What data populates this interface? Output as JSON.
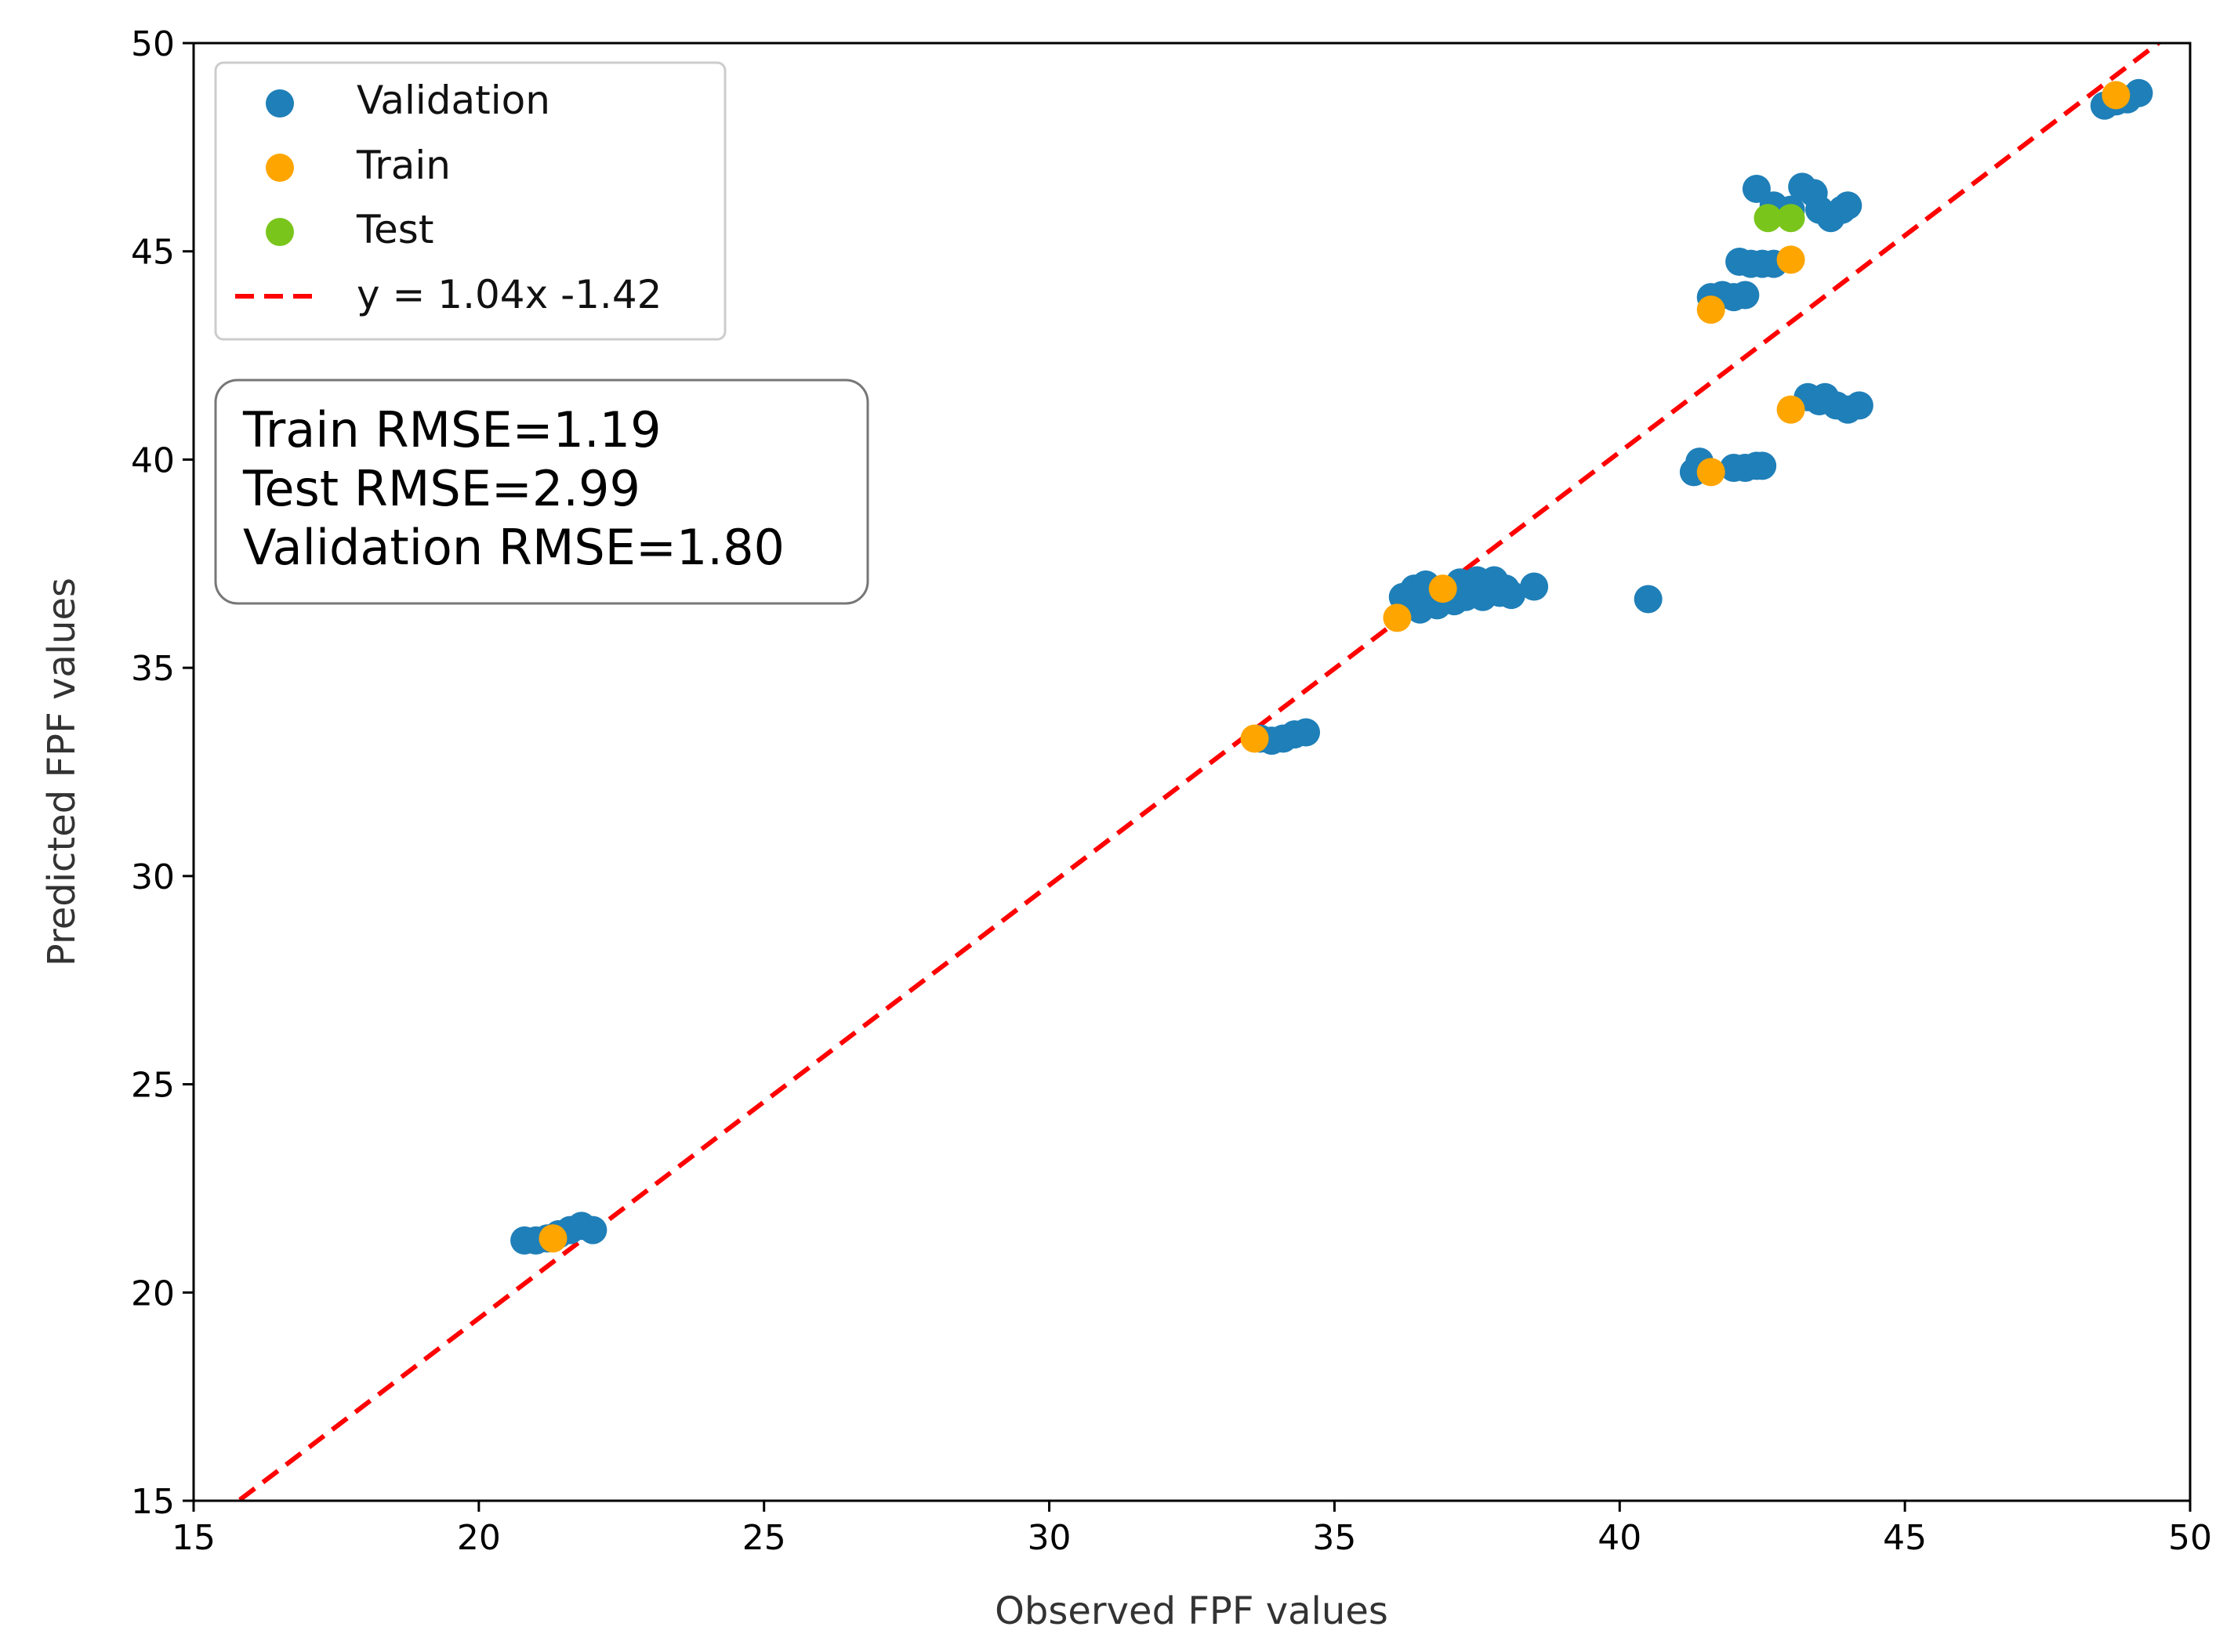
{
  "chart_data": {
    "type": "scatter",
    "xlabel": "Observed FPF values",
    "ylabel": "Predicted FPF values",
    "xlim": [
      15,
      50
    ],
    "ylim": [
      15,
      50
    ],
    "xticks": [
      15,
      20,
      25,
      30,
      35,
      40,
      45,
      50
    ],
    "yticks": [
      15,
      20,
      25,
      30,
      35,
      40,
      45,
      50
    ],
    "grid": false,
    "legend_position": "top-left",
    "series": [
      {
        "name": "Validation",
        "color": "#1f7fb8",
        "points": [
          [
            20.8,
            21.25
          ],
          [
            21.0,
            21.25
          ],
          [
            21.2,
            21.3
          ],
          [
            21.4,
            21.4
          ],
          [
            21.6,
            21.5
          ],
          [
            21.8,
            21.6
          ],
          [
            22.0,
            21.5
          ],
          [
            33.7,
            33.3
          ],
          [
            33.9,
            33.25
          ],
          [
            34.1,
            33.3
          ],
          [
            34.3,
            33.4
          ],
          [
            34.5,
            33.45
          ],
          [
            36.2,
            36.7
          ],
          [
            36.4,
            36.9
          ],
          [
            36.5,
            36.4
          ],
          [
            36.6,
            37.0
          ],
          [
            36.8,
            36.5
          ],
          [
            36.9,
            36.8
          ],
          [
            37.1,
            36.6
          ],
          [
            37.2,
            37.05
          ],
          [
            37.3,
            36.7
          ],
          [
            37.4,
            36.9
          ],
          [
            37.5,
            37.1
          ],
          [
            37.6,
            36.7
          ],
          [
            37.7,
            36.95
          ],
          [
            37.8,
            37.1
          ],
          [
            37.9,
            36.8
          ],
          [
            38.0,
            36.9
          ],
          [
            38.1,
            36.75
          ],
          [
            38.5,
            36.95
          ],
          [
            40.5,
            36.65
          ],
          [
            41.3,
            39.7
          ],
          [
            41.4,
            39.95
          ],
          [
            42.0,
            39.8
          ],
          [
            42.2,
            39.8
          ],
          [
            42.4,
            39.85
          ],
          [
            42.5,
            39.85
          ],
          [
            41.6,
            43.9
          ],
          [
            41.8,
            43.95
          ],
          [
            42.0,
            43.9
          ],
          [
            42.2,
            43.95
          ],
          [
            42.1,
            44.75
          ],
          [
            42.3,
            44.7
          ],
          [
            42.5,
            44.7
          ],
          [
            42.7,
            44.7
          ],
          [
            43.3,
            41.5
          ],
          [
            43.5,
            41.4
          ],
          [
            43.6,
            41.5
          ],
          [
            43.8,
            41.3
          ],
          [
            44.0,
            41.2
          ],
          [
            44.2,
            41.3
          ],
          [
            42.4,
            46.5
          ],
          [
            42.7,
            46.1
          ],
          [
            43.0,
            46.0
          ],
          [
            43.2,
            46.55
          ],
          [
            43.4,
            46.4
          ],
          [
            43.5,
            46.0
          ],
          [
            43.7,
            45.8
          ],
          [
            43.9,
            46.0
          ],
          [
            44.0,
            46.1
          ],
          [
            48.5,
            48.5
          ],
          [
            48.7,
            48.6
          ],
          [
            48.9,
            48.65
          ],
          [
            49.1,
            48.8
          ]
        ]
      },
      {
        "name": "Train",
        "color": "#ffa500",
        "points": [
          [
            21.3,
            21.3
          ],
          [
            33.6,
            33.3
          ],
          [
            36.1,
            36.2
          ],
          [
            36.9,
            36.9
          ],
          [
            41.6,
            39.7
          ],
          [
            41.6,
            43.6
          ],
          [
            43.0,
            44.8
          ],
          [
            43.0,
            41.2
          ],
          [
            48.7,
            48.75
          ]
        ]
      },
      {
        "name": "Test",
        "color": "#7ac51c",
        "points": [
          [
            42.6,
            45.8
          ],
          [
            43.0,
            45.8
          ]
        ]
      }
    ],
    "fit_line": {
      "label": "y = 1.04x -1.42",
      "slope": 1.04,
      "intercept": -1.42,
      "color": "#ff0000"
    },
    "annotation": {
      "lines": [
        "Train RMSE=1.19",
        "Test RMSE=2.99",
        "Validation RMSE=1.80"
      ]
    }
  }
}
